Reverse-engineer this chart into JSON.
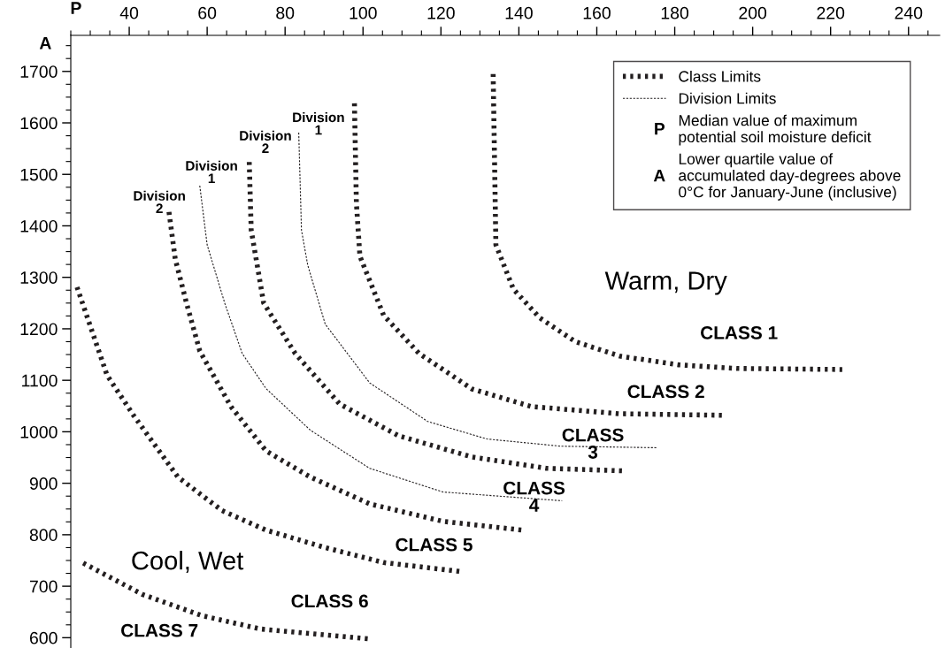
{
  "chart_data": {
    "type": "line",
    "xlabel": "P",
    "ylabel": "A",
    "xlim": [
      25,
      248
    ],
    "ylim": [
      580,
      1770
    ],
    "xticks": [
      40,
      60,
      80,
      100,
      120,
      140,
      160,
      180,
      200,
      220,
      240
    ],
    "yticks": [
      600,
      700,
      800,
      900,
      1000,
      1100,
      1200,
      1300,
      1400,
      1500,
      1600,
      1700
    ],
    "grid": false,
    "legend": "top right",
    "marker": "none",
    "series": [
      {
        "name": "Class Limits",
        "color": "#231f20",
        "line_style": "dotted",
        "x": [
          133.4,
          134.1,
          138.6,
          145.4,
          154.5,
          165.9,
          181,
          196,
          223
        ],
        "values": [
          1695,
          1363,
          1277,
          1221,
          1175,
          1147,
          1130,
          1123,
          1121
        ]
      },
      {
        "color": "#231f20",
        "line_style": "dotted",
        "x": [
          97.8,
          98.3,
          99.2,
          105.3,
          114.4,
          128,
          143.2,
          165.9,
          192.6
        ],
        "values": [
          1638,
          1444,
          1341,
          1226,
          1152,
          1083,
          1049,
          1035,
          1032
        ]
      },
      {
        "name": "Division Limits",
        "color": "#231f20",
        "line_style": "dashed",
        "x": [
          83.5,
          84.2,
          85.8,
          90.3,
          101.7,
          116.6,
          131.8,
          150.7,
          175.4
        ],
        "values": [
          1581,
          1392,
          1324,
          1209,
          1095,
          1020,
          986,
          972,
          969
        ]
      },
      {
        "color": "#231f20",
        "line_style": "dotted",
        "x": [
          70.8,
          71.3,
          74.5,
          82.6,
          94,
          109.2,
          128,
          147,
          167.4
        ],
        "values": [
          1524,
          1392,
          1250,
          1152,
          1054,
          992,
          951,
          929,
          924
        ]
      },
      {
        "color": "#231f20",
        "line_style": "dashed",
        "x": [
          58.1,
          60,
          64.5,
          69,
          75.1,
          86.5,
          101.7,
          120.5,
          151.1
        ],
        "values": [
          1478,
          1363,
          1250,
          1152,
          1084,
          1003,
          929,
          883,
          866
        ]
      },
      {
        "color": "#231f20",
        "line_style": "dotted",
        "x": [
          50.2,
          51.8,
          54.7,
          58.1,
          66.1,
          75.1,
          86.5,
          101.7,
          120.5,
          140.9
        ],
        "values": [
          1427,
          1336,
          1250,
          1157,
          1049,
          963,
          912,
          860,
          826,
          809
        ]
      },
      {
        "color": "#231f20",
        "line_style": "dotted",
        "x": [
          26.6,
          34.3,
          41.1,
          52.5,
          63.8,
          75.1,
          90.3,
          105.3,
          125.7
        ],
        "values": [
          1281,
          1110,
          1032,
          912,
          847,
          809,
          775,
          746,
          728
        ]
      },
      {
        "color": "#231f20",
        "line_style": "dotted",
        "x": [
          28.2,
          43.4,
          58.6,
          73.6,
          101.2
        ],
        "values": [
          745,
          684,
          643,
          617,
          598
        ]
      }
    ],
    "annotations": [
      "Median value of maximum\npotential soil moisture deficit",
      "Lower quartile value of\naccumulated day-degrees above\n0°C for January-June (inclusive)",
      "Division\n2",
      "Division\n1",
      "Division\n2",
      "Division\n1",
      "Warm, Dry",
      "CLASS 1",
      "CLASS 2",
      {
        "text": "CLASS\n3",
        "x": 159,
        "y": 974
      },
      {
        "text": "CLASS\n4",
        "x": 143.9,
        "y": 871
      },
      "CLASS 5",
      "CLASS 6",
      "Cool, Wet",
      "CLASS 7"
    ]
  }
}
